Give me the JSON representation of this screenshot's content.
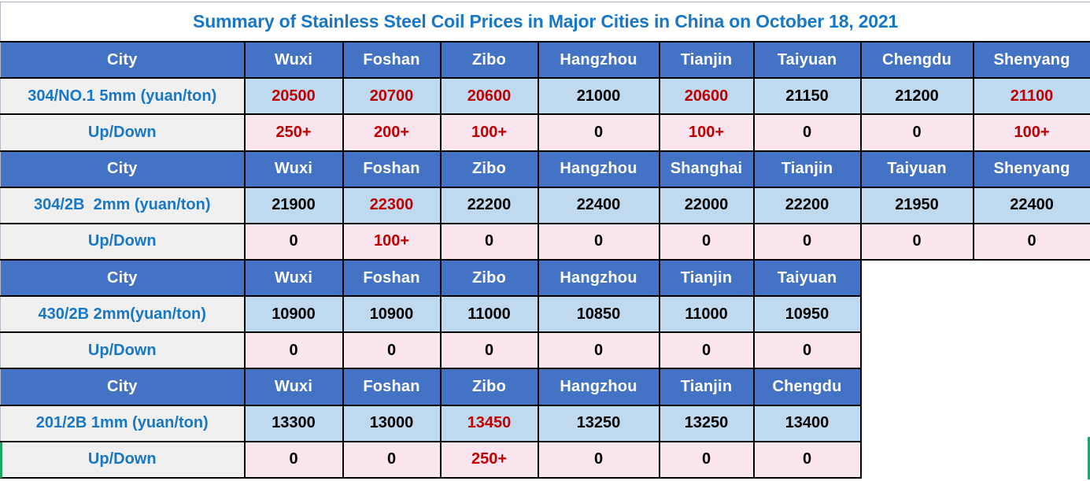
{
  "title": "Summary of Stainless Steel Coil Prices in Major Cities in China on October 18, 2021",
  "labels": {
    "city": "City",
    "up_down": "Up/Down"
  },
  "colors": {
    "header_bg": "#4472c4",
    "price_bg": "#bfd9ef",
    "change_bg": "#fbe5ef",
    "label_bg": "#f0f0f0",
    "label_text": "#1877c6",
    "highlight_text": "#c00000",
    "selection_green": "#1ca566"
  },
  "sections": [
    {
      "product_label": "304/NO.1 5mm (yuan/ton)",
      "cities": [
        "Wuxi",
        "Foshan",
        "Zibo",
        "Hangzhou",
        "Tianjin",
        "Taiyuan",
        "Chengdu",
        "Shenyang"
      ],
      "prices": [
        {
          "v": "20500",
          "hl": true
        },
        {
          "v": "20700",
          "hl": true
        },
        {
          "v": "20600",
          "hl": true
        },
        {
          "v": "21000",
          "hl": false
        },
        {
          "v": "20600",
          "hl": true
        },
        {
          "v": "21150",
          "hl": false
        },
        {
          "v": "21200",
          "hl": false
        },
        {
          "v": "21100",
          "hl": true
        }
      ],
      "changes": [
        {
          "v": "250+",
          "hl": true
        },
        {
          "v": "200+",
          "hl": true
        },
        {
          "v": "100+",
          "hl": true
        },
        {
          "v": "0",
          "hl": false
        },
        {
          "v": "100+",
          "hl": true
        },
        {
          "v": "0",
          "hl": false
        },
        {
          "v": "0",
          "hl": false
        },
        {
          "v": "100+",
          "hl": true
        }
      ]
    },
    {
      "product_label": "304/2B  2mm (yuan/ton)",
      "cities": [
        "Wuxi",
        "Foshan",
        "Zibo",
        "Hangzhou",
        "Shanghai",
        "Tianjin",
        "Taiyuan",
        "Shenyang"
      ],
      "prices": [
        {
          "v": "21900",
          "hl": false
        },
        {
          "v": "22300",
          "hl": true
        },
        {
          "v": "22200",
          "hl": false
        },
        {
          "v": "22400",
          "hl": false
        },
        {
          "v": "22000",
          "hl": false
        },
        {
          "v": "22200",
          "hl": false
        },
        {
          "v": "21950",
          "hl": false
        },
        {
          "v": "22400",
          "hl": false
        }
      ],
      "changes": [
        {
          "v": "0",
          "hl": false
        },
        {
          "v": "100+",
          "hl": true
        },
        {
          "v": "0",
          "hl": false
        },
        {
          "v": "0",
          "hl": false
        },
        {
          "v": "0",
          "hl": false
        },
        {
          "v": "0",
          "hl": false
        },
        {
          "v": "0",
          "hl": false
        },
        {
          "v": "0",
          "hl": false
        }
      ]
    },
    {
      "product_label": "430/2B 2mm(yuan/ton)",
      "cities": [
        "Wuxi",
        "Foshan",
        "Zibo",
        "Hangzhou",
        "Tianjin",
        "Taiyuan"
      ],
      "prices": [
        {
          "v": "10900",
          "hl": false
        },
        {
          "v": "10900",
          "hl": false
        },
        {
          "v": "11000",
          "hl": false
        },
        {
          "v": "10850",
          "hl": false
        },
        {
          "v": "11000",
          "hl": false
        },
        {
          "v": "10950",
          "hl": false
        }
      ],
      "changes": [
        {
          "v": "0",
          "hl": false
        },
        {
          "v": "0",
          "hl": false
        },
        {
          "v": "0",
          "hl": false
        },
        {
          "v": "0",
          "hl": false
        },
        {
          "v": "0",
          "hl": false
        },
        {
          "v": "0",
          "hl": false
        }
      ]
    },
    {
      "product_label": "201/2B 1mm (yuan/ton)",
      "cities": [
        "Wuxi",
        "Foshan",
        "Zibo",
        "Hangzhou",
        "Tianjin",
        "Chengdu"
      ],
      "prices": [
        {
          "v": "13300",
          "hl": false
        },
        {
          "v": "13000",
          "hl": false
        },
        {
          "v": "13450",
          "hl": true
        },
        {
          "v": "13250",
          "hl": false
        },
        {
          "v": "13250",
          "hl": false
        },
        {
          "v": "13400",
          "hl": false
        }
      ],
      "changes": [
        {
          "v": "0",
          "hl": false
        },
        {
          "v": "0",
          "hl": false
        },
        {
          "v": "250+",
          "hl": true
        },
        {
          "v": "0",
          "hl": false
        },
        {
          "v": "0",
          "hl": false
        },
        {
          "v": "0",
          "hl": false
        }
      ]
    }
  ]
}
